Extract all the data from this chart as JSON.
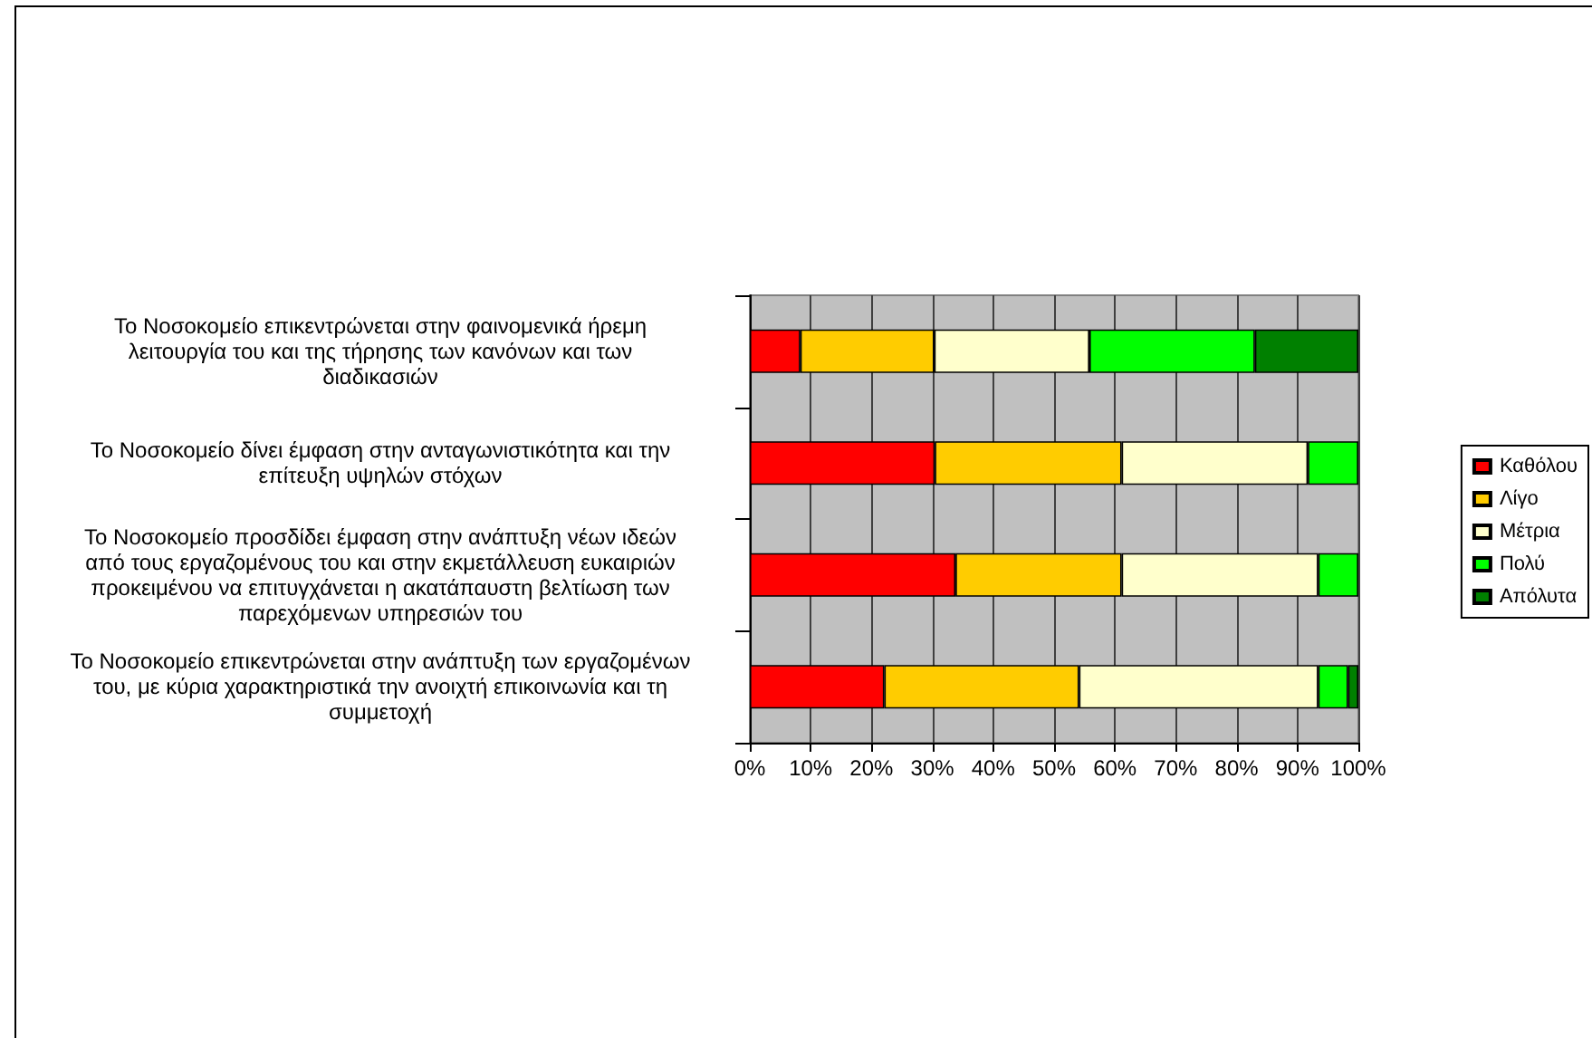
{
  "chart_data": {
    "type": "bar",
    "orientation": "horizontal",
    "stacked": true,
    "categories": [
      "Το Νοσοκομείο επικεντρώνεται στην φαινομενικά ήρεμη λειτουργία του και της τήρησης των κανόνων και των διαδικασιών",
      "Το Νοσοκομείο δίνει έμφαση στην ανταγωνιστικότητα και την επίτευξη υψηλών στόχων",
      "Το Νοσοκομείο προσδίδει έμφαση στην ανάπτυξη νέων ιδεών από τους εργαζομένους του και στην εκμετάλλευση ευκαιριών προκειμένου να επιτυγχάνεται η ακατάπαυστη βελτίωση των παρεχόμενων υπηρεσιών του",
      "Το Νοσοκομείο επικεντρώνεται στην ανάπτυξη των εργαζομένων του, με κύρια χαρακτηριστικά την ανοιχτή επικοινωνία και τη συμμετοχή"
    ],
    "series": [
      {
        "name": "Καθόλου",
        "color": "#ff0000",
        "values": [
          8.3,
          30.4,
          33.8,
          22.1
        ]
      },
      {
        "name": "Λίγο",
        "color": "#ffcc00",
        "values": [
          22.0,
          30.7,
          27.3,
          32.0
        ]
      },
      {
        "name": "Μέτρια",
        "color": "#ffffcc",
        "values": [
          25.5,
          30.6,
          32.3,
          39.3
        ]
      },
      {
        "name": "Πολύ",
        "color": "#00ff00",
        "values": [
          27.2,
          8.3,
          6.6,
          4.9
        ]
      },
      {
        "name": "Απόλυτα",
        "color": "#008000",
        "values": [
          17.0,
          0,
          0,
          1.7
        ]
      }
    ],
    "xlim": [
      0,
      100
    ],
    "xticks": [
      {
        "value": 0,
        "label": "0%"
      },
      {
        "value": 10,
        "label": "10%"
      },
      {
        "value": 20,
        "label": "20%"
      },
      {
        "value": 30,
        "label": "30%"
      },
      {
        "value": 40,
        "label": "40%"
      },
      {
        "value": 50,
        "label": "50%"
      },
      {
        "value": 60,
        "label": "60%"
      },
      {
        "value": 70,
        "label": "70%"
      },
      {
        "value": 80,
        "label": "80%"
      },
      {
        "value": 90,
        "label": "90%"
      },
      {
        "value": 100,
        "label": "100%"
      }
    ],
    "grid": "x",
    "legend": "right"
  }
}
